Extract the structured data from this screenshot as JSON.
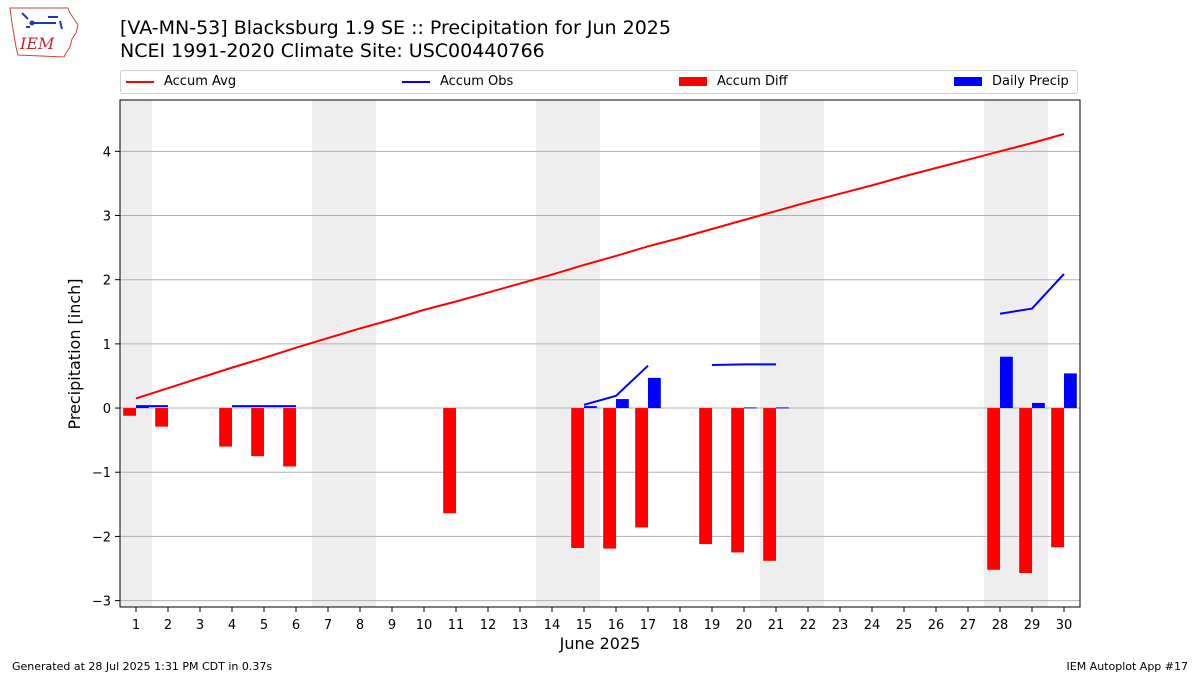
{
  "title": "[VA-MN-53] Blacksburg 1.9 SE :: Precipitation for Jun 2025",
  "subtitle": "NCEI 1991-2020 Climate Site: USC00440766",
  "logo_text": "IEM",
  "footer_left": "Generated at 28 Jul 2025 1:31 PM CDT in 0.37s",
  "footer_right": "IEM Autoplot App #17",
  "legend": [
    {
      "label": "Accum Avg",
      "color": "#ff0000",
      "kind": "line"
    },
    {
      "label": "Accum Obs",
      "color": "#0000ff",
      "kind": "line"
    },
    {
      "label": "Accum Diff",
      "color": "#ff0000",
      "kind": "bar"
    },
    {
      "label": "Daily Precip",
      "color": "#0000ff",
      "kind": "bar"
    }
  ],
  "chart_data": {
    "type": "bar",
    "xlabel": "June 2025",
    "ylabel": "Precipitation [inch]",
    "xlim": [
      0.5,
      30.5
    ],
    "ylim": [
      -3.1,
      4.8
    ],
    "yticks": [
      -3,
      -2,
      -1,
      0,
      1,
      2,
      3,
      4
    ],
    "ytick_labels": [
      "−3",
      "−2",
      "−1",
      "0",
      "1",
      "2",
      "3",
      "4"
    ],
    "xticks": [
      1,
      2,
      3,
      4,
      5,
      6,
      7,
      8,
      9,
      10,
      11,
      12,
      13,
      14,
      15,
      16,
      17,
      18,
      19,
      20,
      21,
      22,
      23,
      24,
      25,
      26,
      27,
      28,
      29,
      30
    ],
    "weekends": [
      [
        0.5,
        1.5
      ],
      [
        6.5,
        8.5
      ],
      [
        13.5,
        15.5
      ],
      [
        20.5,
        22.5
      ],
      [
        27.5,
        29.5
      ]
    ],
    "grid": "y",
    "legend_position": "top",
    "series": [
      {
        "name": "Accum Avg",
        "type": "line",
        "color": "#ff0000",
        "x": [
          1,
          2,
          3,
          4,
          5,
          6,
          7,
          8,
          9,
          10,
          11,
          12,
          13,
          14,
          15,
          16,
          17,
          18,
          19,
          20,
          21,
          22,
          23,
          24,
          25,
          26,
          27,
          28,
          29,
          30
        ],
        "values": [
          0.15,
          0.31,
          0.47,
          0.63,
          0.78,
          0.94,
          1.09,
          1.24,
          1.38,
          1.53,
          1.66,
          1.8,
          1.94,
          2.08,
          2.23,
          2.37,
          2.52,
          2.65,
          2.79,
          2.93,
          3.07,
          3.21,
          3.34,
          3.47,
          3.61,
          3.74,
          3.87,
          4.0,
          4.13,
          4.27
        ]
      },
      {
        "name": "Accum Obs",
        "type": "line",
        "color": "#0000ff",
        "segments": [
          {
            "x": [
              1,
              2
            ],
            "values": [
              0.03,
              0.03
            ]
          },
          {
            "x": [
              4,
              5,
              6
            ],
            "values": [
              0.03,
              0.03,
              0.03
            ]
          },
          {
            "x": [
              15,
              16,
              17
            ],
            "values": [
              0.05,
              0.19,
              0.66
            ]
          },
          {
            "x": [
              19,
              20,
              21
            ],
            "values": [
              0.67,
              0.68,
              0.68
            ]
          },
          {
            "x": [
              28,
              29,
              30
            ],
            "values": [
              1.47,
              1.55,
              2.09
            ]
          }
        ]
      },
      {
        "name": "Accum Diff",
        "type": "bar",
        "color": "#ff0000",
        "x": [
          1,
          2,
          4,
          5,
          6,
          11,
          15,
          16,
          17,
          19,
          20,
          21,
          28,
          29,
          30
        ],
        "values": [
          -0.12,
          -0.29,
          -0.6,
          -0.75,
          -0.91,
          -1.64,
          -2.18,
          -2.19,
          -1.86,
          -2.12,
          -2.25,
          -2.38,
          -2.52,
          -2.57,
          -2.17
        ]
      },
      {
        "name": "Daily Precip",
        "type": "bar",
        "color": "#0000ff",
        "x": [
          1,
          15,
          16,
          17,
          20,
          21,
          28,
          29,
          30
        ],
        "values": [
          0.03,
          0.03,
          0.14,
          0.47,
          0.01,
          0.01,
          0.8,
          0.08,
          0.54
        ]
      }
    ]
  }
}
